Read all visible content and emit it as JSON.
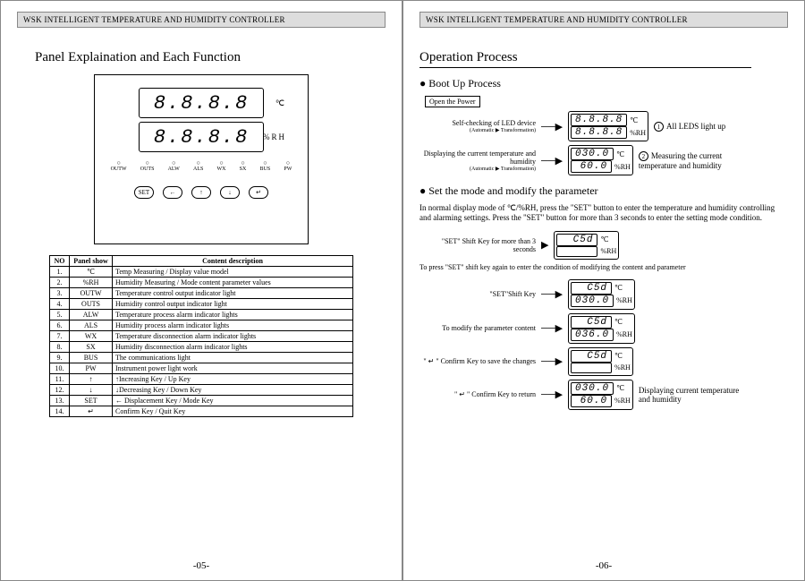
{
  "header": "WSK INTELLIGENT TEMPERATURE AND HUMIDITY CONTROLLER",
  "left": {
    "title": "Panel Explaination and Each Function",
    "lcd_placeholder": "8.8.8.8",
    "unit_c": "℃",
    "unit_rh": "%RH",
    "indicators": [
      "OUTW",
      "OUTS",
      "ALW",
      "ALS",
      "WX",
      "SX",
      "BUS",
      "PW"
    ],
    "buttons": [
      "SET",
      "←",
      "↑",
      "↓",
      "↵"
    ],
    "table_headers": [
      "NO",
      "Panel show",
      "Content description"
    ],
    "rows": [
      [
        "1.",
        "℃",
        "Temp Measuring    /   Display value model"
      ],
      [
        "2.",
        "%RH",
        "Humidity Measuring   /   Mode content parameter values"
      ],
      [
        "3.",
        "OUTW",
        "Temperature control output indicator light"
      ],
      [
        "4.",
        "OUTS",
        "Humidity control output indicator light"
      ],
      [
        "5.",
        "ALW",
        "Temperature process alarm indicator lights"
      ],
      [
        "6.",
        "ALS",
        "Humidity process alarm indicator lights"
      ],
      [
        "7.",
        "WX",
        "Temperature disconnection alarm indicator lights"
      ],
      [
        "8.",
        "SX",
        "Humidity disconnection alarm indicator lights"
      ],
      [
        "9.",
        "BUS",
        "The communications light"
      ],
      [
        "10.",
        "PW",
        "Instrument power light work"
      ],
      [
        "11.",
        "↑",
        "↑Increasing Key / Up Key"
      ],
      [
        "12.",
        "↓",
        "↓Decreasing Key / Down Key"
      ],
      [
        "13.",
        "SET",
        "← Displacement Key / Mode Key"
      ],
      [
        "14.",
        "↵",
        "Confirm Key / Quit Key"
      ]
    ],
    "pagenum": "-05-"
  },
  "right": {
    "title": "Operation  Process",
    "sub1": "Boot Up Process",
    "open_power": "Open the Power",
    "self_check": "Self-checking of LED device",
    "self_check_sub": "(Automatic ▶ Transformation)",
    "all_leds": "All LEDS light up",
    "disp_current": "Displaying the current temperature and humidity",
    "disp_current_sub": "(Automatic ▶ Transformation)",
    "measuring": "Measuring the current temperature and humidity",
    "v_8888": "8.8.8.8",
    "v_030": "030.0",
    "v_60": "60.0",
    "sub2": "Set the mode and modify the parameter",
    "para": "In normal display mode of ℃/%RH,  press the \"SET\" button to enter the temperature and humidity controlling and alarming settings. Press the \"SET\" button for more than 3 seconds to enter the setting mode condition.",
    "step_a": "\"SET\"  Shift Key for more than 3 seconds",
    "csd": "C5d",
    "line2": "To press \"SET\" shift key again to  enter the condition of modifying the content and parameter",
    "step_b": "\"SET\"Shift Key",
    "step_c": "To modify the parameter content",
    "v_036": "036.0",
    "step_d": "\" ↵ \" Confirm Key to save the changes",
    "step_e": "\" ↵ \" Confirm Key to return",
    "final_note": "Displaying current temperature and humidity",
    "pagenum": "-06-"
  }
}
